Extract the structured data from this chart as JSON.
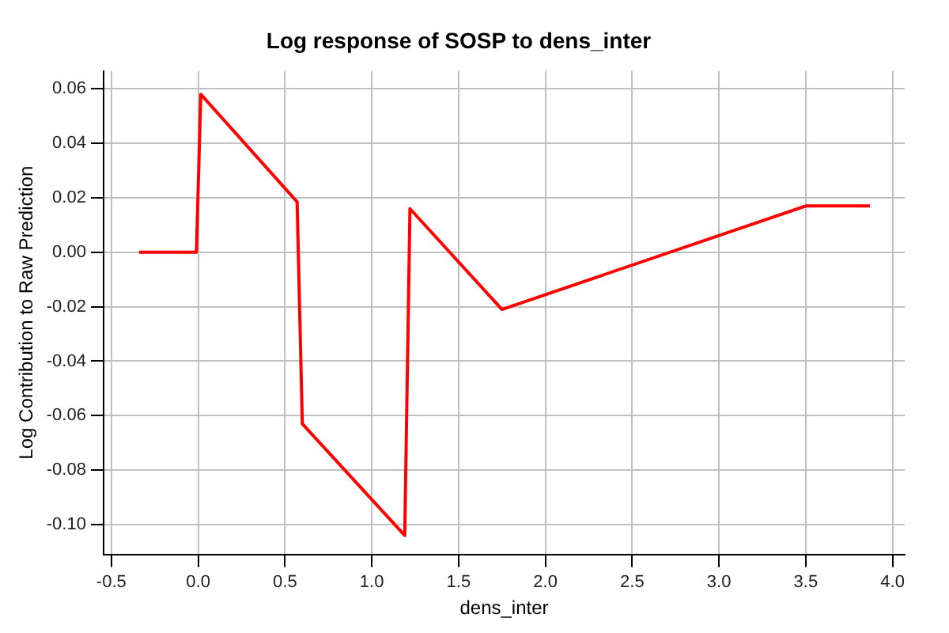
{
  "chart_data": {
    "type": "line",
    "title": "Log response of SOSP to dens_inter",
    "xlabel": "dens_inter",
    "ylabel": "Log Contribution to Raw Prediction",
    "x": [
      -0.34,
      -0.01,
      0.015,
      0.57,
      0.6,
      1.19,
      1.22,
      1.75,
      3.5,
      3.87
    ],
    "series": [
      {
        "color": "#ff0000",
        "values": [
          0,
          0,
          0.058,
          0.0185,
          -0.063,
          -0.104,
          0.016,
          -0.021,
          0.017,
          0.017
        ]
      }
    ],
    "xlim": [
      -0.545,
      4.07
    ],
    "ylim": [
      -0.111,
      0.0666
    ],
    "xticks": [
      {
        "value": -0.5,
        "label": "-0.5"
      },
      {
        "value": 0,
        "label": "0.0"
      },
      {
        "value": 0.5,
        "label": "0.5"
      },
      {
        "value": 1,
        "label": "1.0"
      },
      {
        "value": 1.5,
        "label": "1.5"
      },
      {
        "value": 2,
        "label": "2.0"
      },
      {
        "value": 2.5,
        "label": "2.5"
      },
      {
        "value": 3,
        "label": "3.0"
      },
      {
        "value": 3.5,
        "label": "3.5"
      },
      {
        "value": 4,
        "label": "4.0"
      }
    ],
    "yticks": [
      {
        "value": -0.1,
        "label": "-0.10"
      },
      {
        "value": -0.08,
        "label": "-0.08"
      },
      {
        "value": -0.06,
        "label": "-0.06"
      },
      {
        "value": -0.04,
        "label": "-0.04"
      },
      {
        "value": -0.02,
        "label": "-0.02"
      },
      {
        "value": 0,
        "label": "0.00"
      },
      {
        "value": 0.02,
        "label": "0.02"
      },
      {
        "value": 0.04,
        "label": "0.04"
      },
      {
        "value": 0.06,
        "label": "0.06"
      }
    ],
    "grid": true,
    "legend": false,
    "marker": "none",
    "line_style": "solid"
  }
}
